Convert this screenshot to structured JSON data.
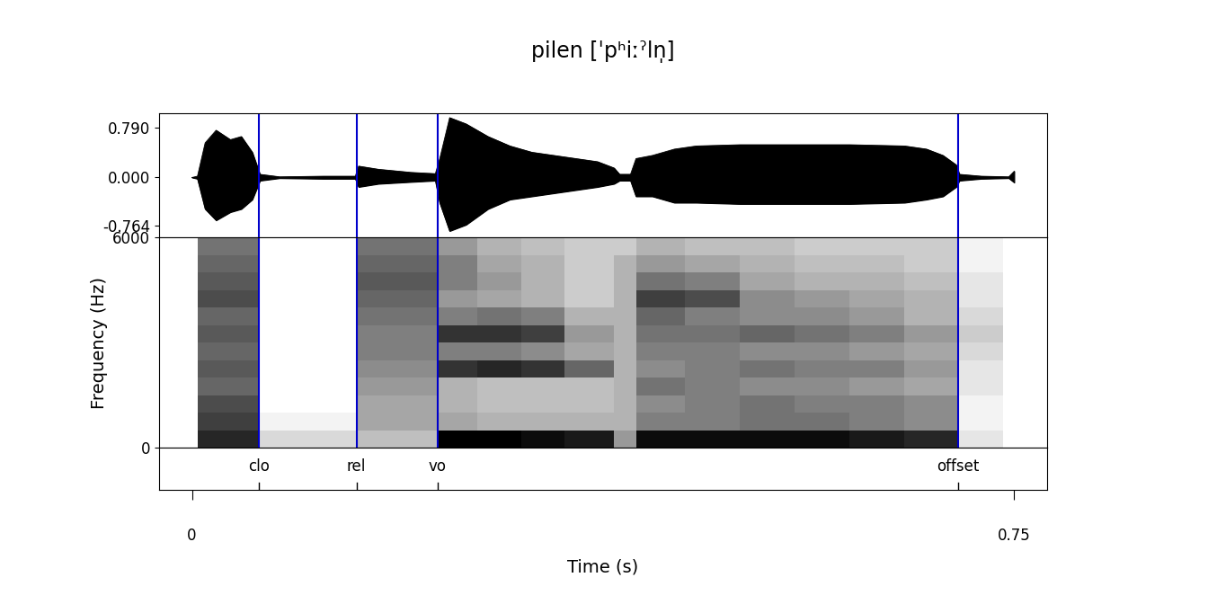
{
  "chart_data": [
    {
      "type": "waveform",
      "title": "pilen [ˈpʰiːˀln̩]",
      "x": [
        0.0,
        0.005,
        0.012,
        0.022,
        0.035,
        0.045,
        0.055,
        0.062,
        0.08,
        0.12,
        0.149,
        0.152,
        0.17,
        0.2,
        0.222,
        0.226,
        0.235,
        0.25,
        0.27,
        0.29,
        0.31,
        0.33,
        0.35,
        0.37,
        0.385,
        0.39,
        0.4,
        0.405,
        0.42,
        0.44,
        0.46,
        0.5,
        0.55,
        0.6,
        0.65,
        0.67,
        0.685,
        0.697,
        0.7,
        0.72,
        0.745,
        0.75
      ],
      "upper": [
        0,
        0.02,
        0.55,
        0.75,
        0.6,
        0.65,
        0.4,
        0.05,
        0.01,
        0.02,
        0.02,
        0.18,
        0.13,
        0.08,
        0.06,
        0.3,
        0.95,
        0.85,
        0.65,
        0.5,
        0.4,
        0.35,
        0.3,
        0.25,
        0.15,
        0.05,
        0.05,
        0.3,
        0.35,
        0.45,
        0.5,
        0.52,
        0.52,
        0.52,
        0.5,
        0.45,
        0.35,
        0.2,
        0.05,
        0.02,
        0.01,
        0.1
      ],
      "lower": [
        0,
        -0.02,
        -0.5,
        -0.68,
        -0.55,
        -0.5,
        -0.35,
        -0.05,
        -0.01,
        -0.02,
        -0.02,
        -0.15,
        -0.1,
        -0.07,
        -0.05,
        -0.4,
        -0.85,
        -0.75,
        -0.5,
        -0.35,
        -0.3,
        -0.25,
        -0.2,
        -0.15,
        -0.1,
        -0.05,
        -0.05,
        -0.3,
        -0.3,
        -0.4,
        -0.4,
        -0.42,
        -0.42,
        -0.42,
        -0.4,
        -0.35,
        -0.3,
        -0.15,
        -0.05,
        -0.02,
        -0.01,
        -0.08
      ],
      "color": "#000000",
      "xlim": [
        -0.03,
        0.78
      ],
      "ylim": [
        -0.95,
        1.02
      ],
      "yticks": [
        {
          "value": 0.79,
          "label": "0.790"
        },
        {
          "value": 0,
          "label": "0.000"
        },
        {
          "value": -0.764,
          "label": "-0.764"
        }
      ]
    },
    {
      "type": "heatmap",
      "ylabel": "Frequency (Hz)",
      "time_edges": [
        0.005,
        0.06,
        0.15,
        0.224,
        0.26,
        0.3,
        0.34,
        0.385,
        0.405,
        0.45,
        0.5,
        0.55,
        0.6,
        0.65,
        0.699,
        0.74
      ],
      "freq_edges": [
        0,
        500,
        1000,
        1500,
        2000,
        2500,
        3000,
        3500,
        4000,
        4500,
        5000,
        5500,
        6000
      ],
      "cells": [
        [
          0.85,
          0.75,
          0.7,
          0.6,
          0.65,
          0.6,
          0.65,
          0.6,
          0.7,
          0.65,
          0.6,
          0.55
        ],
        [
          0.15,
          0.05,
          0,
          0,
          0,
          0,
          0,
          0,
          0,
          0,
          0,
          0
        ],
        [
          0.25,
          0.35,
          0.35,
          0.4,
          0.45,
          0.5,
          0.5,
          0.55,
          0.6,
          0.65,
          0.6,
          0.55
        ],
        [
          1.0,
          0.35,
          0.3,
          0.3,
          0.8,
          0.5,
          0.8,
          0.5,
          0.4,
          0.5,
          0.5,
          0.4
        ],
        [
          1.0,
          0.3,
          0.25,
          0.25,
          0.85,
          0.5,
          0.8,
          0.55,
          0.35,
          0.4,
          0.35,
          0.3
        ],
        [
          0.95,
          0.3,
          0.25,
          0.25,
          0.8,
          0.45,
          0.75,
          0.5,
          0.3,
          0.3,
          0.3,
          0.25
        ],
        [
          0.9,
          0.3,
          0.25,
          0.25,
          0.6,
          0.35,
          0.4,
          0.3,
          0.2,
          0.2,
          0.2,
          0.2
        ],
        [
          0.4,
          0.3,
          0.3,
          0.3,
          0.3,
          0.3,
          0.3,
          0.3,
          0.3,
          0.3,
          0.3,
          0.2
        ],
        [
          0.95,
          0.5,
          0.45,
          0.55,
          0.45,
          0.5,
          0.55,
          0.6,
          0.75,
          0.55,
          0.4,
          0.3
        ],
        [
          0.95,
          0.5,
          0.5,
          0.5,
          0.5,
          0.5,
          0.55,
          0.5,
          0.7,
          0.5,
          0.35,
          0.25
        ],
        [
          0.95,
          0.55,
          0.55,
          0.45,
          0.55,
          0.45,
          0.6,
          0.45,
          0.45,
          0.35,
          0.3,
          0.25
        ],
        [
          0.95,
          0.55,
          0.5,
          0.45,
          0.5,
          0.45,
          0.55,
          0.45,
          0.4,
          0.3,
          0.25,
          0.2
        ],
        [
          0.9,
          0.5,
          0.5,
          0.4,
          0.5,
          0.4,
          0.5,
          0.4,
          0.35,
          0.3,
          0.25,
          0.2
        ],
        [
          0.85,
          0.45,
          0.45,
          0.35,
          0.4,
          0.35,
          0.4,
          0.3,
          0.3,
          0.25,
          0.2,
          0.2
        ],
        [
          0.1,
          0.05,
          0.05,
          0.1,
          0.1,
          0.15,
          0.2,
          0.15,
          0.1,
          0.1,
          0.05,
          0.05
        ]
      ],
      "zlim": [
        0,
        1
      ],
      "xlim": [
        -0.03,
        0.78
      ],
      "ylim": [
        0,
        6000
      ],
      "yticks": [
        0,
        6000
      ]
    },
    {
      "type": "tier",
      "xlabel": "Time (s)",
      "boundaries": {
        "labels": [
          "clo",
          "rel",
          "vo",
          "offset"
        ],
        "x": [
          0.0607,
          0.15,
          0.224,
          0.699
        ],
        "color": "#0000cc"
      },
      "xlim": [
        -0.03,
        0.78
      ],
      "xticks": [
        0,
        0.75
      ]
    }
  ]
}
